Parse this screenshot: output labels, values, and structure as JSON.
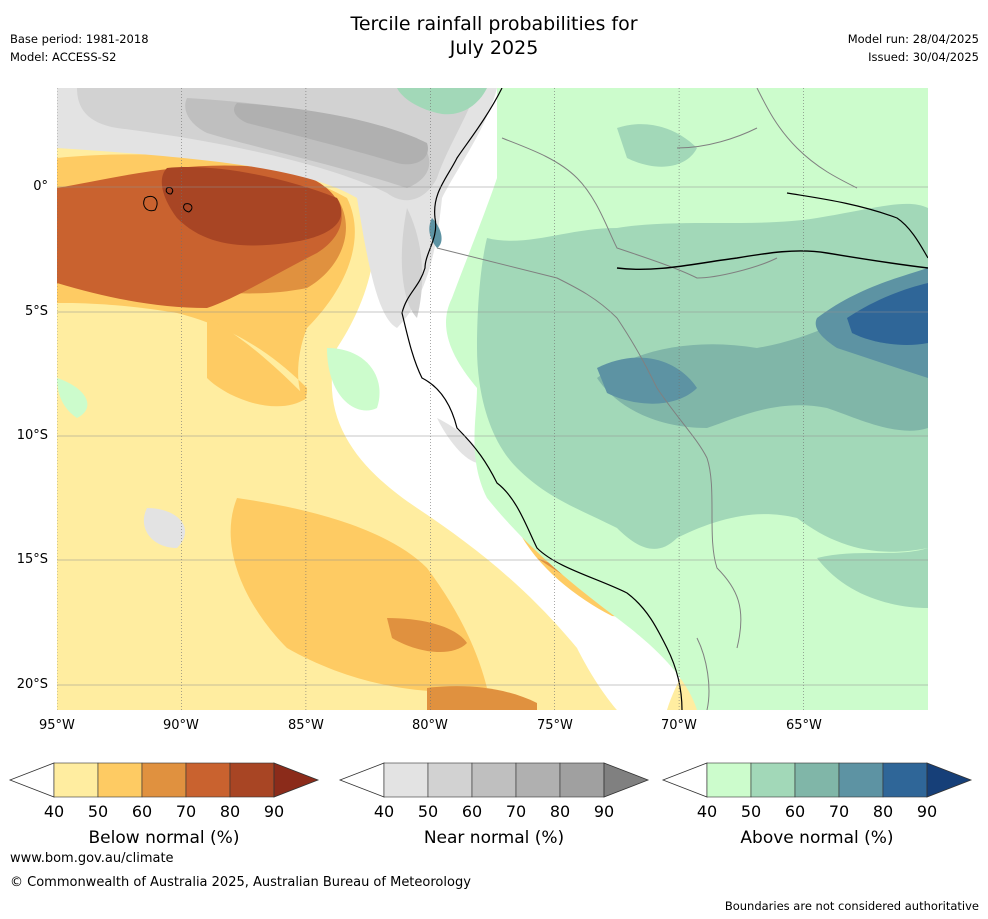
{
  "header": {
    "title_line1": "Tercile rainfall probabilities for",
    "title_line2": "July 2025",
    "base_period": "Base period: 1981-2018",
    "model": "Model: ACCESS-S2",
    "model_run": "Model run: 28/04/2025",
    "issued": "Issued: 30/04/2025"
  },
  "map": {
    "lon_ticks": [
      "95°W",
      "90°W",
      "85°W",
      "80°W",
      "75°W",
      "70°W",
      "65°W"
    ],
    "lat_ticks": [
      "0°",
      "5°S",
      "10°S",
      "15°S",
      "20°S"
    ]
  },
  "colorbars": [
    {
      "label": "Below normal (%)",
      "ticks": [
        "40",
        "50",
        "60",
        "70",
        "80",
        "90"
      ],
      "colors": [
        "#ffeda0",
        "#fecb63",
        "#e0913f",
        "#c9622f",
        "#a84524",
        "#8b2b1a"
      ]
    },
    {
      "label": "Near normal (%)",
      "ticks": [
        "40",
        "50",
        "60",
        "70",
        "80",
        "90"
      ],
      "colors": [
        "#e3e3e3",
        "#d2d2d2",
        "#bfbfbf",
        "#b0b0b0",
        "#a0a0a0",
        "#808080"
      ]
    },
    {
      "label": "Above normal (%)",
      "ticks": [
        "40",
        "50",
        "60",
        "70",
        "80",
        "90"
      ],
      "colors": [
        "#ccfccc",
        "#a2d8b8",
        "#80b6a8",
        "#5d93a3",
        "#2f6698",
        "#163f78"
      ]
    }
  ],
  "footer": {
    "website": "www.bom.gov.au/climate",
    "copyright": "© Commonwealth of Australia 2025, Australian Bureau of Meteorology",
    "disclaimer": "Boundaries are not considered authoritative"
  }
}
